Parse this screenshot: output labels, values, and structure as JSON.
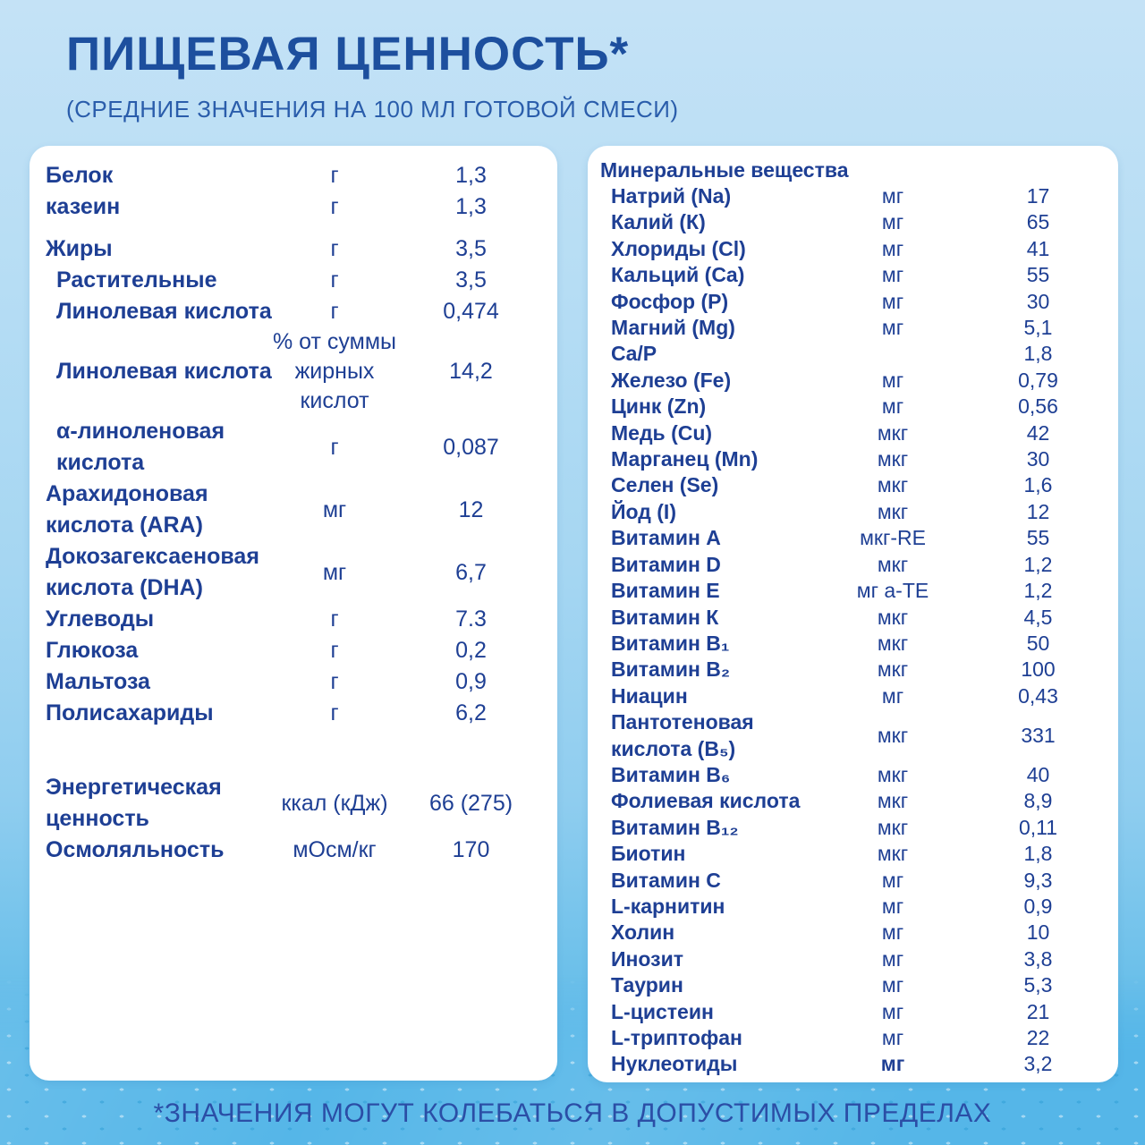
{
  "header": {
    "title": "ПИЩЕВАЯ ЦЕННОСТЬ*",
    "subtitle": "(СРЕДНИЕ ЗНАЧЕНИЯ НА 100 МЛ ГОТОВОЙ СМЕСИ)"
  },
  "left_table": {
    "rows": [
      {
        "label": "Белок",
        "unit": "г",
        "value": "1,3"
      },
      {
        "label": "казеин",
        "unit": "г",
        "value": "1,3"
      },
      {
        "label": "Жиры",
        "unit": "г",
        "value": "3,5",
        "gap": "sm"
      },
      {
        "label": "Растительные",
        "unit": "г",
        "value": "3,5",
        "indent": true
      },
      {
        "label": "Линолевая кислота",
        "unit": "г",
        "value": "0,474",
        "indent": true
      },
      {
        "label": "Линолевая кислота",
        "unit": "% от суммы жирных кислот",
        "value": "14,2",
        "indent": true
      },
      {
        "label": "α-линоленовая кислота",
        "unit": "г",
        "value": "0,087",
        "indent": true
      },
      {
        "label": "Арахидоновая кислота (ARA)",
        "unit": "мг",
        "value": "12"
      },
      {
        "label": "Докозагексаеновая кислота (DHA)",
        "unit": "мг",
        "value": "6,7"
      },
      {
        "label": "Углеводы",
        "unit": "г",
        "value": "7.3"
      },
      {
        "label": "Глюкоза",
        "unit": "г",
        "value": "0,2"
      },
      {
        "label": "Мальтоза",
        "unit": "г",
        "value": "0,9"
      },
      {
        "label": "Полисахариды",
        "unit": "г",
        "value": "6,2"
      },
      {
        "label": "Энергетическая ценность",
        "unit": "ккал (кДж)",
        "value": "66 (275)",
        "gap": "lg"
      },
      {
        "label": "Осмоляльность",
        "unit": "мОсм/кг",
        "value": "170"
      }
    ]
  },
  "right_table": {
    "header": "Минеральные вещества",
    "rows": [
      {
        "label": "Натрий (Na)",
        "unit": "мг",
        "value": "17"
      },
      {
        "label": "Калий (К)",
        "unit": "мг",
        "value": "65"
      },
      {
        "label": "Хлориды (Cl)",
        "unit": "мг",
        "value": "41"
      },
      {
        "label": "Кальций (Ca)",
        "unit": "мг",
        "value": "55"
      },
      {
        "label": "Фосфор (P)",
        "unit": "мг",
        "value": "30"
      },
      {
        "label": "Магний (Mg)",
        "unit": "мг",
        "value": "5,1"
      },
      {
        "label": "Ca/P",
        "unit": "",
        "value": "1,8"
      },
      {
        "label": "Железо (Fe)",
        "unit": "мг",
        "value": "0,79"
      },
      {
        "label": "Цинк (Zn)",
        "unit": "мг",
        "value": "0,56"
      },
      {
        "label": "Медь (Cu)",
        "unit": "мкг",
        "value": "42"
      },
      {
        "label": "Марганец (Mn)",
        "unit": "мкг",
        "value": "30"
      },
      {
        "label": "Селен (Se)",
        "unit": "мкг",
        "value": "1,6"
      },
      {
        "label": "Йод (I)",
        "unit": "мкг",
        "value": "12"
      },
      {
        "label": "Витамин А",
        "unit": "мкг-RE",
        "value": "55"
      },
      {
        "label": "Витамин D",
        "unit": "мкг",
        "value": "1,2"
      },
      {
        "label": "Витамин Е",
        "unit": "мг a-TE",
        "value": "1,2"
      },
      {
        "label": "Витамин К",
        "unit": "мкг",
        "value": "4,5"
      },
      {
        "label": "Витамин B₁",
        "unit": "мкг",
        "value": "50"
      },
      {
        "label": "Витамин B₂",
        "unit": "мкг",
        "value": "100"
      },
      {
        "label": "Ниацин",
        "unit": "мг",
        "value": "0,43"
      },
      {
        "label": "Пантотеновая кислота (B₅)",
        "unit": "мкг",
        "value": "331"
      },
      {
        "label": "Витамин B₆",
        "unit": "мкг",
        "value": "40"
      },
      {
        "label": "Фолиевая кислота",
        "unit": "мкг",
        "value": "8,9"
      },
      {
        "label": "Витамин B₁₂",
        "unit": "мкг",
        "value": "0,11"
      },
      {
        "label": "Биотин",
        "unit": "мкг",
        "value": "1,8"
      },
      {
        "label": "Витамин С",
        "unit": "мг",
        "value": "9,3"
      },
      {
        "label": "L-карнитин",
        "unit": "мг",
        "value": "0,9"
      },
      {
        "label": "Холин",
        "unit": "мг",
        "value": "10"
      },
      {
        "label": "Инозит",
        "unit": "мг",
        "value": "3,8"
      },
      {
        "label": "Таурин",
        "unit": "мг",
        "value": "5,3"
      },
      {
        "label": "L-цистеин",
        "unit": "мг",
        "value": "21"
      },
      {
        "label": "L-триптофан",
        "unit": "мг",
        "value": "22"
      },
      {
        "label": "Нуклеотиды",
        "unit": "мг",
        "value": "3,2",
        "unit_bold": true
      }
    ]
  },
  "footer": {
    "note": "*ЗНАЧЕНИЯ МОГУТ КОЛЕБАТЬСЯ В ДОПУСТИМЫХ ПРЕДЕЛАХ"
  },
  "colors": {
    "title_text": "#1d4f9e",
    "subtitle_text": "#2a5dab",
    "table_text": "#1e3f94",
    "footer_text": "#2b4ea6",
    "background_top": "#c4e2f6",
    "background_bottom": "#55b6e8",
    "panel_background": "#ffffff"
  }
}
